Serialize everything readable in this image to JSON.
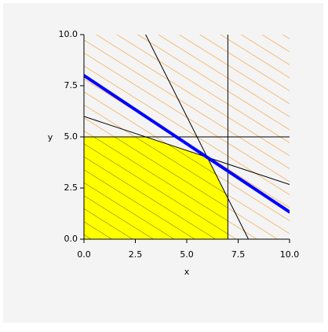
{
  "chart_data": {
    "type": "inequality",
    "x_label": "x",
    "y_label": "y",
    "xlim": [
      0,
      10
    ],
    "ylim": [
      0,
      10
    ],
    "xticks": [
      {
        "value": 0,
        "label": "0.0"
      },
      {
        "value": 2.5,
        "label": "2.5"
      },
      {
        "value": 5,
        "label": "5.0"
      },
      {
        "value": 7.5,
        "label": "7.5"
      },
      {
        "value": 10,
        "label": "10.0"
      }
    ],
    "yticks": [
      {
        "value": 0,
        "label": "0.0"
      },
      {
        "value": 2.5,
        "label": "2.5"
      },
      {
        "value": 5,
        "label": "5.0"
      },
      {
        "value": 7.5,
        "label": "7.5"
      },
      {
        "value": 10,
        "label": "10.0"
      }
    ],
    "infeasible_color": "#f39a2c",
    "region": {
      "color": "#ffff00",
      "hatch_color": "#6b6b00",
      "x": [
        0,
        7,
        7,
        6,
        3,
        0
      ],
      "values": [
        0,
        0,
        2,
        4,
        5,
        5
      ]
    },
    "series": [
      {
        "color": "#000000",
        "width": 1,
        "x": [
          7,
          7
        ],
        "values": [
          0,
          10
        ]
      },
      {
        "color": "#000000",
        "width": 1,
        "x": [
          0,
          10
        ],
        "values": [
          5,
          5
        ]
      },
      {
        "color": "#000000",
        "width": 1,
        "x": [
          3,
          8
        ],
        "values": [
          10,
          0
        ]
      },
      {
        "color": "#000000",
        "width": 1,
        "x": [
          0,
          10
        ],
        "values": [
          6,
          2.67
        ]
      },
      {
        "color": "#0000ff",
        "width": 4,
        "x": [
          0,
          10
        ],
        "values": [
          8,
          1.33
        ]
      }
    ]
  }
}
